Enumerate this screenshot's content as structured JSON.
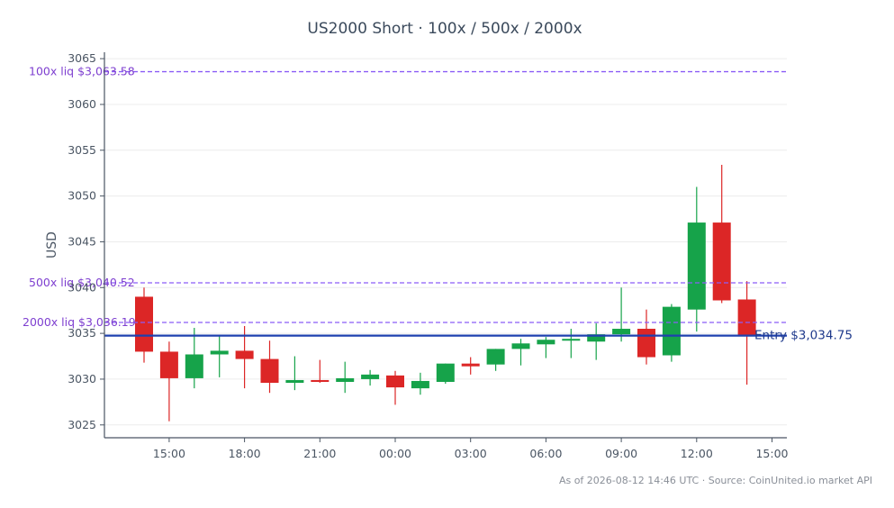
{
  "chart_data": {
    "type": "candlestick",
    "title": "US2000 Short · 100x / 500x / 2000x",
    "ylabel": "USD",
    "xlabel": "",
    "ylim": [
      3023.6,
      3065.7
    ],
    "yticks": [
      3025,
      3030,
      3035,
      3040,
      3045,
      3050,
      3055,
      3060,
      3065
    ],
    "xticks": [
      "15:00",
      "18:00",
      "21:00",
      "00:00",
      "03:00",
      "06:00",
      "09:00",
      "12:00",
      "15:00"
    ],
    "grid": true,
    "colors": {
      "up": "#16a34a",
      "down": "#dc2626",
      "liq": "#8b5cf6",
      "entry": "#1e40af"
    },
    "candles": [
      {
        "o": 3039.0,
        "h": 3040.0,
        "l": 3031.8,
        "c": 3033.0
      },
      {
        "o": 3033.0,
        "h": 3034.1,
        "l": 3025.4,
        "c": 3030.1
      },
      {
        "o": 3030.1,
        "h": 3035.6,
        "l": 3029.0,
        "c": 3032.7
      },
      {
        "o": 3032.7,
        "h": 3034.7,
        "l": 3030.2,
        "c": 3033.1
      },
      {
        "o": 3033.1,
        "h": 3035.8,
        "l": 3029.0,
        "c": 3032.2
      },
      {
        "o": 3032.2,
        "h": 3034.2,
        "l": 3028.5,
        "c": 3029.6
      },
      {
        "o": 3029.6,
        "h": 3032.5,
        "l": 3028.8,
        "c": 3029.9
      },
      {
        "o": 3029.9,
        "h": 3032.1,
        "l": 3029.6,
        "c": 3029.7
      },
      {
        "o": 3029.7,
        "h": 3031.9,
        "l": 3028.5,
        "c": 3030.1
      },
      {
        "o": 3030.0,
        "h": 3031.0,
        "l": 3029.3,
        "c": 3030.5
      },
      {
        "o": 3030.4,
        "h": 3030.9,
        "l": 3027.2,
        "c": 3029.1
      },
      {
        "o": 3029.0,
        "h": 3030.7,
        "l": 3028.3,
        "c": 3029.8
      },
      {
        "o": 3029.7,
        "h": 3031.7,
        "l": 3029.5,
        "c": 3031.7
      },
      {
        "o": 3031.7,
        "h": 3032.4,
        "l": 3030.5,
        "c": 3031.4
      },
      {
        "o": 3031.6,
        "h": 3033.3,
        "l": 3030.9,
        "c": 3033.3
      },
      {
        "o": 3033.3,
        "h": 3034.4,
        "l": 3031.5,
        "c": 3033.9
      },
      {
        "o": 3033.8,
        "h": 3034.6,
        "l": 3032.3,
        "c": 3034.3
      },
      {
        "o": 3034.2,
        "h": 3035.5,
        "l": 3032.3,
        "c": 3034.4
      },
      {
        "o": 3034.1,
        "h": 3036.1,
        "l": 3032.1,
        "c": 3034.9
      },
      {
        "o": 3034.9,
        "h": 3040.0,
        "l": 3034.1,
        "c": 3035.5
      },
      {
        "o": 3035.5,
        "h": 3037.6,
        "l": 3031.6,
        "c": 3032.4
      },
      {
        "o": 3032.6,
        "h": 3038.2,
        "l": 3031.9,
        "c": 3037.9
      },
      {
        "o": 3037.6,
        "h": 3051.0,
        "l": 3035.2,
        "c": 3047.1
      },
      {
        "o": 3047.1,
        "h": 3053.4,
        "l": 3038.3,
        "c": 3038.6
      },
      {
        "o": 3038.7,
        "h": 3040.7,
        "l": 3029.4,
        "c": 3034.7
      }
    ],
    "liquidation_levels": [
      {
        "label": "100x liq $3,063.58",
        "value": 3063.58
      },
      {
        "label": "500x liq $3,040.52",
        "value": 3040.52
      },
      {
        "label": "2000x liq $3,036.19",
        "value": 3036.19
      }
    ],
    "entry": {
      "label": "Entry $3,034.75",
      "value": 3034.75
    }
  },
  "footer": "As of 2026-08-12 14:46 UTC · Source: CoinUnited.io market API"
}
